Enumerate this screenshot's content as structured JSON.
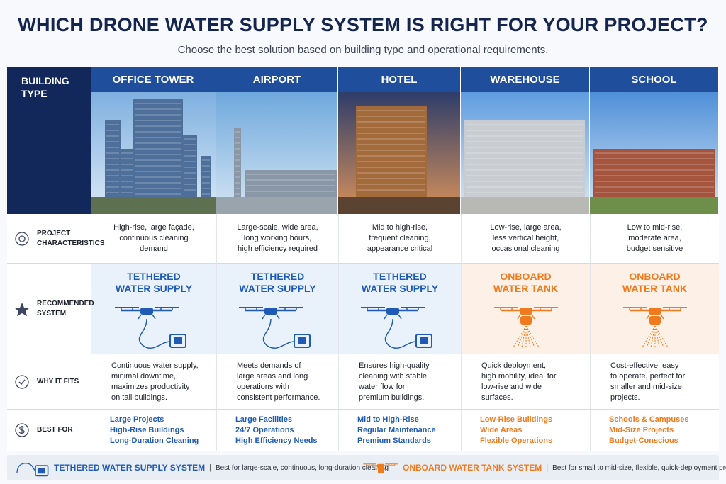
{
  "header": {
    "title": "WHICH DRONE WATER SUPPLY SYSTEM IS RIGHT FOR YOUR PROJECT?",
    "subtitle": "Choose the best solution based on building type and operational requirements."
  },
  "table": {
    "corner": "BUILDING TYPE",
    "columns": [
      "OFFICE TOWER",
      "AIRPORT",
      "HOTEL",
      "WAREHOUSE",
      "SCHOOL"
    ],
    "rows": [
      {
        "label": "PROJECT CHARACTERISTICS",
        "cells": [
          [
            "High-rise, large façade,",
            "continuous cleaning",
            "demand"
          ],
          [
            "Large-scale, wide area,",
            "long working hours,",
            "high efficiency required"
          ],
          [
            "Mid to high-rise,",
            "frequent cleaning,",
            "appearance critical"
          ],
          [
            "Low-rise, large area,",
            "less vertical height,",
            "occasional cleaning"
          ],
          [
            "Low to mid-rise,",
            "moderate area,",
            "budget sensitive"
          ]
        ]
      },
      {
        "label": "RECOMMENDED SYSTEM",
        "cells": [
          [
            "TETHERED",
            "WATER SUPPLY"
          ],
          [
            "TETHERED",
            "WATER SUPPLY"
          ],
          [
            "TETHERED",
            "WATER SUPPLY"
          ],
          [
            "ONBOARD",
            "WATER TANK"
          ],
          [
            "ONBOARD",
            "WATER TANK"
          ]
        ]
      },
      {
        "label": "WHY IT FITS",
        "cells": [
          [
            "Continuous water supply,",
            "minimal downtime,",
            "maximizes productivity",
            "on tall buildings."
          ],
          [
            "Meets demands of",
            "large areas and long",
            "operations with",
            "consistent performance."
          ],
          [
            "Ensures high-quality",
            "cleaning with stable",
            "water flow for",
            "premium buildings."
          ],
          [
            "Quick deployment,",
            "high mobility, ideal for",
            "low-rise and wide",
            "surfaces."
          ],
          [
            "Cost-effective, easy",
            "to operate, perfect for",
            "smaller and mid-size",
            "projects."
          ]
        ]
      },
      {
        "label": "BEST FOR",
        "cells": [
          [
            "Large Projects",
            "High-Rise Buildings",
            "Long-Duration Cleaning"
          ],
          [
            "Large Facilities",
            "24/7 Operations",
            "High Efficiency Needs"
          ],
          [
            "Mid to High-Rise",
            "Regular Maintenance",
            "Premium Standards"
          ],
          [
            "Low-Rise Buildings",
            "Wide Areas",
            "Flexible Operations"
          ],
          [
            "Schools & Campuses",
            "Mid-Size Projects",
            "Budget-Conscious"
          ]
        ]
      }
    ]
  },
  "legend": [
    {
      "name": "TETHERED WATER SUPPLY SYSTEM",
      "description": "Best for large-scale, continuous, long-duration cleaning"
    },
    {
      "name": "ONBOARD WATER TANK SYSTEM",
      "description": "Best for small to mid-size, flexible, quick-deployment projects"
    }
  ]
}
